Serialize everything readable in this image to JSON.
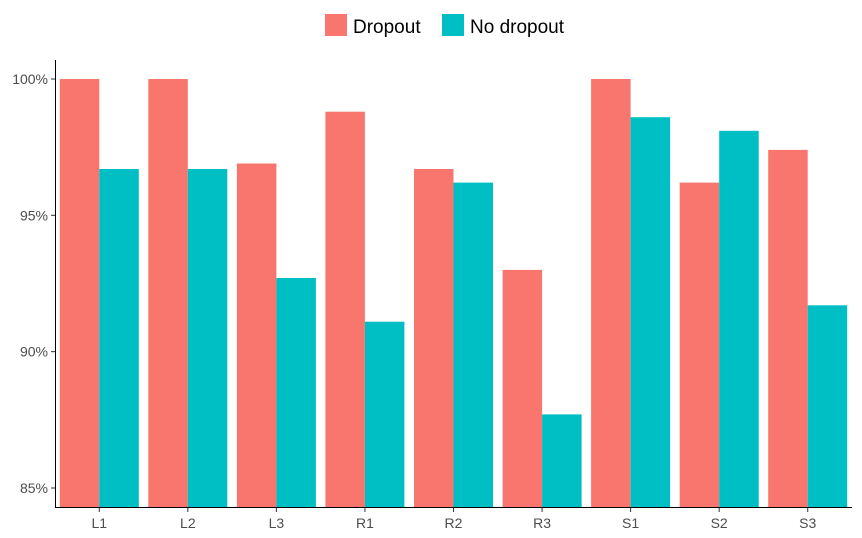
{
  "chart_data": {
    "type": "bar",
    "title": "",
    "xlabel": "",
    "ylabel": "",
    "categories": [
      "L1",
      "L2",
      "L3",
      "R1",
      "R2",
      "R3",
      "S1",
      "S2",
      "S3"
    ],
    "series": [
      {
        "name": "Dropout",
        "color": "#F8766D",
        "values": [
          100.0,
          100.0,
          96.9,
          98.8,
          96.7,
          93.0,
          100.0,
          96.2,
          97.4
        ]
      },
      {
        "name": "No dropout",
        "color": "#00BFC4",
        "values": [
          96.7,
          96.7,
          92.7,
          91.1,
          96.2,
          87.7,
          98.6,
          98.1,
          91.7
        ]
      }
    ],
    "ylim": [
      84.5,
      101.0
    ],
    "yticks": [
      85,
      90,
      95,
      100
    ],
    "ytick_labels": [
      "85%",
      "90%",
      "95%",
      "100%"
    ],
    "grid": false,
    "legend_position": "top"
  }
}
